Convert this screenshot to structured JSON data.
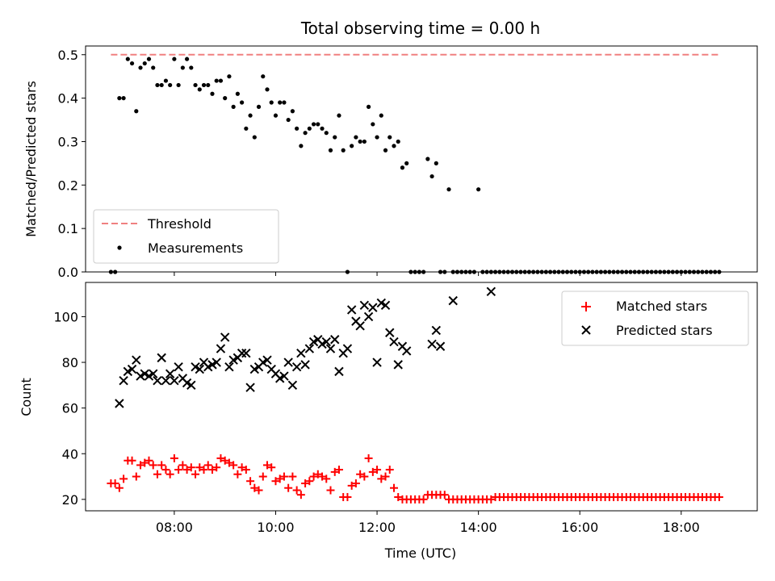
{
  "figure": {
    "title": "Total observing time = 0.00 h"
  },
  "chart_data": [
    {
      "type": "scatter",
      "panel": "top",
      "ylabel": "Matched/Predicted stars",
      "xlabel": "",
      "ylim": [
        0,
        0.52
      ],
      "xlim": [
        "06:15",
        "19:30"
      ],
      "yticks": [
        "0.0",
        "0.1",
        "0.2",
        "0.3",
        "0.4",
        "0.5"
      ],
      "legend_position": "lower-left",
      "series": [
        {
          "name": "Threshold",
          "kind": "dashed-line",
          "color": "#f08080",
          "x": [
            "06:45",
            "18:45"
          ],
          "y": [
            0.5,
            0.5
          ]
        },
        {
          "name": "Measurements",
          "kind": "dot",
          "color": "#000000",
          "x": [
            "06:45",
            "06:50",
            "06:55",
            "07:00",
            "07:05",
            "07:10",
            "07:15",
            "07:20",
            "07:25",
            "07:30",
            "07:35",
            "07:40",
            "07:45",
            "07:50",
            "07:55",
            "08:00",
            "08:05",
            "08:10",
            "08:15",
            "08:20",
            "08:25",
            "08:30",
            "08:35",
            "08:40",
            "08:45",
            "08:50",
            "08:55",
            "09:00",
            "09:05",
            "09:10",
            "09:15",
            "09:20",
            "09:25",
            "09:30",
            "09:35",
            "09:40",
            "09:45",
            "09:50",
            "09:55",
            "10:00",
            "10:05",
            "10:10",
            "10:15",
            "10:20",
            "10:25",
            "10:30",
            "10:35",
            "10:40",
            "10:45",
            "10:50",
            "10:55",
            "11:00",
            "11:05",
            "11:10",
            "11:15",
            "11:20",
            "11:25",
            "11:30",
            "11:35",
            "11:40",
            "11:45",
            "11:50",
            "11:55",
            "12:00",
            "12:05",
            "12:10",
            "12:15",
            "12:20",
            "12:25",
            "12:30",
            "12:35",
            "12:40",
            "12:45",
            "12:50",
            "12:55",
            "13:00",
            "13:05",
            "13:10",
            "13:15",
            "13:20",
            "13:25",
            "13:30",
            "13:35",
            "13:40",
            "13:45",
            "13:50",
            "13:55",
            "14:00",
            "14:05",
            "14:10",
            "14:15",
            "14:20",
            "14:25",
            "14:30",
            "14:35",
            "14:40",
            "14:45",
            "14:50",
            "14:55",
            "15:00",
            "15:05",
            "15:10",
            "15:15",
            "15:20",
            "15:25",
            "15:30",
            "15:35",
            "15:40",
            "15:45",
            "15:50",
            "15:55",
            "16:00",
            "16:05",
            "16:10",
            "16:15",
            "16:20",
            "16:25",
            "16:30",
            "16:35",
            "16:40",
            "16:45",
            "16:50",
            "16:55",
            "17:00",
            "17:05",
            "17:10",
            "17:15",
            "17:20",
            "17:25",
            "17:30",
            "17:35",
            "17:40",
            "17:45",
            "17:50",
            "17:55",
            "18:00",
            "18:05",
            "18:10",
            "18:15",
            "18:20",
            "18:25",
            "18:30",
            "18:35",
            "18:40",
            "18:45"
          ],
          "y": [
            0.0,
            0.0,
            0.4,
            0.4,
            0.49,
            0.48,
            0.37,
            0.47,
            0.48,
            0.49,
            0.47,
            0.43,
            0.43,
            0.44,
            0.43,
            0.49,
            0.43,
            0.47,
            0.49,
            0.47,
            0.43,
            0.42,
            0.43,
            0.43,
            0.41,
            0.44,
            0.44,
            0.4,
            0.45,
            0.38,
            0.41,
            0.39,
            0.33,
            0.36,
            0.31,
            0.38,
            0.45,
            0.42,
            0.39,
            0.36,
            0.39,
            0.39,
            0.35,
            0.37,
            0.33,
            0.29,
            0.32,
            0.33,
            0.34,
            0.34,
            0.33,
            0.32,
            0.28,
            0.31,
            0.36,
            0.28,
            0.0,
            0.29,
            0.31,
            0.3,
            0.3,
            0.38,
            0.34,
            0.31,
            0.36,
            0.28,
            0.31,
            0.29,
            0.3,
            0.24,
            0.25,
            0.0,
            0.0,
            0.0,
            0.0,
            0.26,
            0.22,
            0.25,
            0.0,
            0.0,
            0.19,
            0.0,
            0.0,
            0.0,
            0.0,
            0.0,
            0.0,
            0.19,
            0.0,
            0.0,
            0.0,
            0.0,
            0.0,
            0.0,
            0.0,
            0.0,
            0.0,
            0.0,
            0.0,
            0.0,
            0.0,
            0.0,
            0.0,
            0.0,
            0.0,
            0.0,
            0.0,
            0.0,
            0.0,
            0.0,
            0.0,
            0.0,
            0.0,
            0.0,
            0.0,
            0.0,
            0.0,
            0.0,
            0.0,
            0.0,
            0.0,
            0.0,
            0.0,
            0.0,
            0.0,
            0.0,
            0.0,
            0.0,
            0.0,
            0.0,
            0.0,
            0.0,
            0.0,
            0.0,
            0.0,
            0.0,
            0.0,
            0.0,
            0.0,
            0.0,
            0.0,
            0.0,
            0.0,
            0.0,
            0.0
          ]
        }
      ]
    },
    {
      "type": "scatter",
      "panel": "bottom",
      "ylabel": "Count",
      "xlabel": "Time (UTC)",
      "ylim": [
        15,
        115
      ],
      "xlim": [
        "06:15",
        "19:30"
      ],
      "yticks": [
        "20",
        "40",
        "60",
        "80",
        "100"
      ],
      "xticks": [
        "08:00",
        "10:00",
        "12:00",
        "14:00",
        "16:00",
        "18:00"
      ],
      "legend_position": "upper-right",
      "series": [
        {
          "name": "Matched stars",
          "kind": "plus",
          "color": "#ff0000",
          "x": [
            "06:45",
            "06:50",
            "06:55",
            "07:00",
            "07:05",
            "07:10",
            "07:15",
            "07:20",
            "07:25",
            "07:30",
            "07:35",
            "07:40",
            "07:45",
            "07:50",
            "07:55",
            "08:00",
            "08:05",
            "08:10",
            "08:15",
            "08:20",
            "08:25",
            "08:30",
            "08:35",
            "08:40",
            "08:45",
            "08:50",
            "08:55",
            "09:00",
            "09:05",
            "09:10",
            "09:15",
            "09:20",
            "09:25",
            "09:30",
            "09:35",
            "09:40",
            "09:45",
            "09:50",
            "09:55",
            "10:00",
            "10:05",
            "10:10",
            "10:15",
            "10:20",
            "10:25",
            "10:30",
            "10:35",
            "10:40",
            "10:45",
            "10:50",
            "10:55",
            "11:00",
            "11:05",
            "11:10",
            "11:15",
            "11:20",
            "11:25",
            "11:30",
            "11:35",
            "11:40",
            "11:45",
            "11:50",
            "11:55",
            "12:00",
            "12:05",
            "12:10",
            "12:15",
            "12:20",
            "12:25",
            "12:30",
            "12:35",
            "12:40",
            "12:45",
            "12:50",
            "12:55",
            "13:00",
            "13:05",
            "13:10",
            "13:15",
            "13:20",
            "13:25",
            "13:30",
            "13:35",
            "13:40",
            "13:45",
            "13:50",
            "13:55",
            "14:00",
            "14:05",
            "14:10",
            "14:15",
            "14:20",
            "14:25",
            "14:30",
            "14:35",
            "14:40",
            "14:45",
            "14:50",
            "14:55",
            "15:00",
            "15:05",
            "15:10",
            "15:15",
            "15:20",
            "15:25",
            "15:30",
            "15:35",
            "15:40",
            "15:45",
            "15:50",
            "15:55",
            "16:00",
            "16:05",
            "16:10",
            "16:15",
            "16:20",
            "16:25",
            "16:30",
            "16:35",
            "16:40",
            "16:45",
            "16:50",
            "16:55",
            "17:00",
            "17:05",
            "17:10",
            "17:15",
            "17:20",
            "17:25",
            "17:30",
            "17:35",
            "17:40",
            "17:45",
            "17:50",
            "17:55",
            "18:00",
            "18:05",
            "18:10",
            "18:15",
            "18:20",
            "18:25",
            "18:30",
            "18:35",
            "18:40",
            "18:45"
          ],
          "y": [
            27,
            27,
            25,
            29,
            37,
            37,
            30,
            35,
            36,
            37,
            35,
            31,
            35,
            33,
            31,
            38,
            33,
            35,
            33,
            34,
            31,
            34,
            33,
            35,
            33,
            34,
            38,
            37,
            36,
            35,
            31,
            34,
            33,
            28,
            25,
            24,
            30,
            35,
            34,
            28,
            29,
            30,
            25,
            30,
            24,
            22,
            27,
            28,
            30,
            31,
            30,
            29,
            24,
            32,
            33,
            21,
            21,
            26,
            27,
            31,
            30,
            38,
            32,
            33,
            29,
            30,
            33,
            25,
            21,
            20,
            20,
            20,
            20,
            20,
            20,
            22,
            22,
            22,
            22,
            22,
            20,
            20,
            20,
            20,
            20,
            20,
            20,
            20,
            20,
            20,
            20,
            21,
            21,
            21,
            21,
            21,
            21,
            21,
            21,
            21,
            21,
            21,
            21,
            21,
            21,
            21,
            21,
            21,
            21,
            21,
            21,
            21,
            21,
            21,
            21,
            21,
            21,
            21,
            21,
            21,
            21,
            21,
            21,
            21,
            21,
            21,
            21,
            21,
            21,
            21,
            21,
            21,
            21,
            21,
            21,
            21,
            21,
            21,
            21,
            21,
            21,
            21,
            21,
            21,
            21
          ]
        },
        {
          "name": "Predicted stars",
          "kind": "x",
          "color": "#000000",
          "x": [
            "06:55",
            "07:00",
            "07:05",
            "07:10",
            "07:15",
            "07:20",
            "07:25",
            "07:30",
            "07:35",
            "07:40",
            "07:45",
            "07:50",
            "07:55",
            "08:00",
            "08:05",
            "08:10",
            "08:15",
            "08:20",
            "08:25",
            "08:30",
            "08:35",
            "08:40",
            "08:45",
            "08:50",
            "08:55",
            "09:00",
            "09:05",
            "09:10",
            "09:15",
            "09:20",
            "09:25",
            "09:30",
            "09:35",
            "09:40",
            "09:45",
            "09:50",
            "09:55",
            "10:00",
            "10:05",
            "10:10",
            "10:15",
            "10:20",
            "10:25",
            "10:30",
            "10:35",
            "10:40",
            "10:45",
            "10:50",
            "10:55",
            "11:00",
            "11:05",
            "11:10",
            "11:15",
            "11:20",
            "11:25",
            "11:30",
            "11:35",
            "11:40",
            "11:45",
            "11:50",
            "11:55",
            "12:00",
            "12:05",
            "12:10",
            "12:15",
            "12:20",
            "12:25",
            "12:30",
            "12:35",
            "13:05",
            "13:10",
            "13:15",
            "13:30",
            "14:15"
          ],
          "y": [
            62,
            72,
            76,
            77,
            81,
            74,
            75,
            74,
            75,
            72,
            82,
            72,
            75,
            72,
            78,
            73,
            71,
            70,
            78,
            77,
            80,
            78,
            79,
            80,
            86,
            91,
            78,
            81,
            82,
            84,
            84,
            69,
            77,
            78,
            80,
            81,
            77,
            75,
            73,
            74,
            80,
            70,
            78,
            84,
            79,
            86,
            89,
            90,
            88,
            89,
            86,
            90,
            76,
            84,
            86,
            103,
            98,
            96,
            105,
            100,
            104,
            80,
            106,
            105,
            93,
            89,
            79,
            87,
            85,
            88,
            94,
            87,
            107,
            111
          ]
        }
      ]
    }
  ]
}
